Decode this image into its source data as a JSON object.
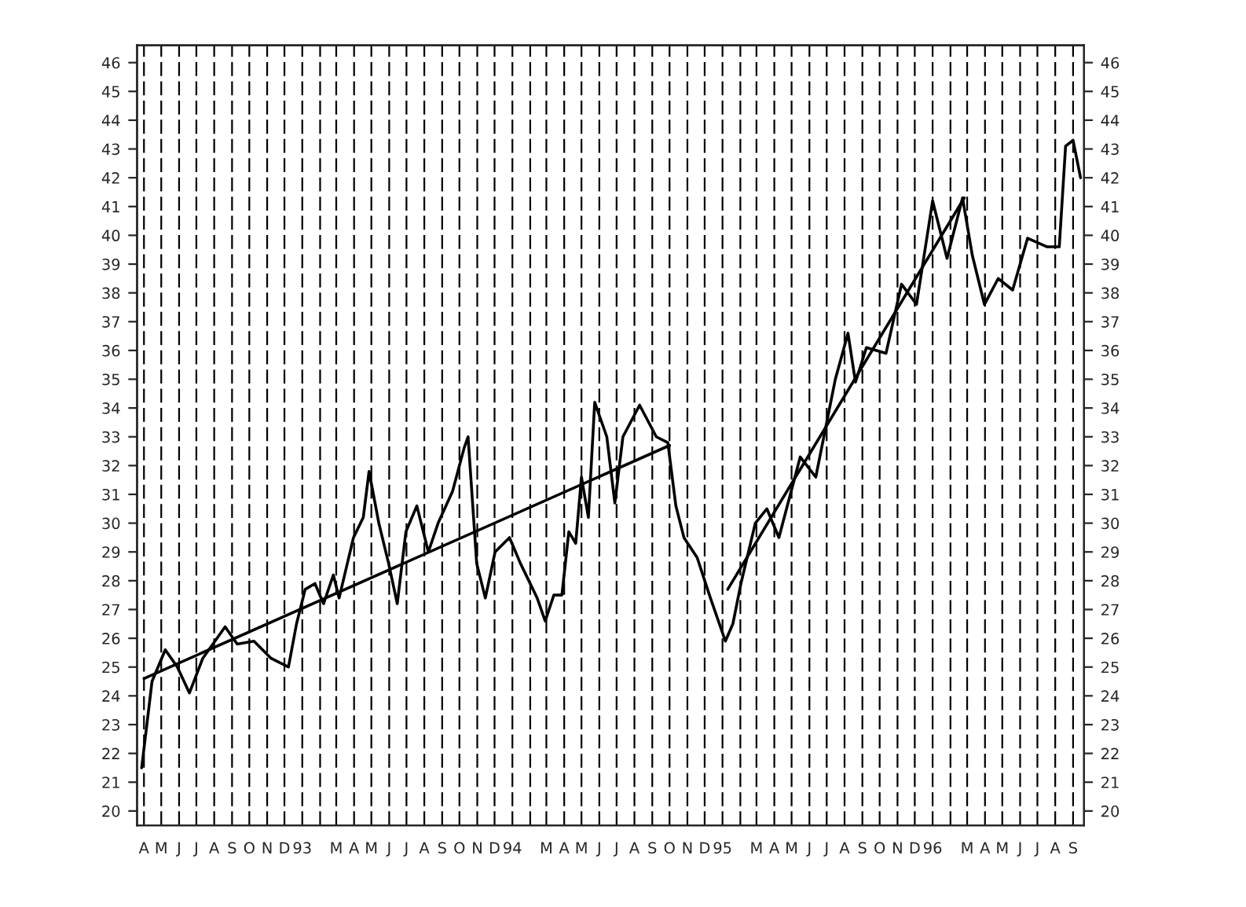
{
  "chart_data": {
    "type": "line",
    "grid": "x",
    "legend": false,
    "marker": "none",
    "line_style": "solid",
    "xlim": [
      "1992-03-20",
      "1996-09-20"
    ],
    "xticks": [
      {
        "value": "1992-04-01",
        "label": "A"
      },
      {
        "value": "1992-05-01",
        "label": "M"
      },
      {
        "value": "1992-06-01",
        "label": "J"
      },
      {
        "value": "1992-07-01",
        "label": "J"
      },
      {
        "value": "1992-08-01",
        "label": "A"
      },
      {
        "value": "1992-09-01",
        "label": "S"
      },
      {
        "value": "1992-10-01",
        "label": "O"
      },
      {
        "value": "1992-11-01",
        "label": "N"
      },
      {
        "value": "1992-12-01",
        "label": "D"
      },
      {
        "value": "1993-01-01",
        "label": "93"
      },
      {
        "value": "1993-02-01",
        "label": null
      },
      {
        "value": "1993-03-01",
        "label": "M"
      },
      {
        "value": "1993-04-01",
        "label": "A"
      },
      {
        "value": "1993-05-01",
        "label": "M"
      },
      {
        "value": "1993-06-01",
        "label": "J"
      },
      {
        "value": "1993-07-01",
        "label": "J"
      },
      {
        "value": "1993-08-01",
        "label": "A"
      },
      {
        "value": "1993-09-01",
        "label": "S"
      },
      {
        "value": "1993-10-01",
        "label": "O"
      },
      {
        "value": "1993-11-01",
        "label": "N"
      },
      {
        "value": "1993-12-01",
        "label": "D"
      },
      {
        "value": "1994-01-01",
        "label": "94"
      },
      {
        "value": "1994-02-01",
        "label": null
      },
      {
        "value": "1994-03-01",
        "label": "M"
      },
      {
        "value": "1994-04-01",
        "label": "A"
      },
      {
        "value": "1994-05-01",
        "label": "M"
      },
      {
        "value": "1994-06-01",
        "label": "J"
      },
      {
        "value": "1994-07-01",
        "label": "J"
      },
      {
        "value": "1994-08-01",
        "label": "A"
      },
      {
        "value": "1994-09-01",
        "label": "S"
      },
      {
        "value": "1994-10-01",
        "label": "O"
      },
      {
        "value": "1994-11-01",
        "label": "N"
      },
      {
        "value": "1994-12-01",
        "label": "D"
      },
      {
        "value": "1995-01-01",
        "label": "95"
      },
      {
        "value": "1995-02-01",
        "label": null
      },
      {
        "value": "1995-03-01",
        "label": "M"
      },
      {
        "value": "1995-04-01",
        "label": "A"
      },
      {
        "value": "1995-05-01",
        "label": "M"
      },
      {
        "value": "1995-06-01",
        "label": "J"
      },
      {
        "value": "1995-07-01",
        "label": "J"
      },
      {
        "value": "1995-08-01",
        "label": "A"
      },
      {
        "value": "1995-09-01",
        "label": "S"
      },
      {
        "value": "1995-10-01",
        "label": "O"
      },
      {
        "value": "1995-11-01",
        "label": "N"
      },
      {
        "value": "1995-12-01",
        "label": "D"
      },
      {
        "value": "1996-01-01",
        "label": "96"
      },
      {
        "value": "1996-02-01",
        "label": null
      },
      {
        "value": "1996-03-01",
        "label": "M"
      },
      {
        "value": "1996-04-01",
        "label": "A"
      },
      {
        "value": "1996-05-01",
        "label": "M"
      },
      {
        "value": "1996-06-01",
        "label": "J"
      },
      {
        "value": "1996-07-01",
        "label": "J"
      },
      {
        "value": "1996-08-01",
        "label": "A"
      },
      {
        "value": "1996-09-01",
        "label": "S"
      }
    ],
    "ylim": [
      19.5,
      46.6
    ],
    "yticks": [
      20,
      21,
      22,
      23,
      24,
      25,
      26,
      27,
      28,
      29,
      30,
      31,
      32,
      33,
      34,
      35,
      36,
      37,
      38,
      39,
      40,
      41,
      42,
      43,
      44,
      45,
      46
    ],
    "y2lim": [
      19.5,
      46.6
    ],
    "y2ticks": [
      20,
      21,
      22,
      23,
      24,
      25,
      26,
      27,
      28,
      29,
      30,
      31,
      32,
      33,
      34,
      35,
      36,
      37,
      38,
      39,
      40,
      41,
      42,
      43,
      44,
      45,
      46
    ],
    "series": [
      {
        "color": "#000000",
        "x": [
          "1992-03-28",
          "1992-04-06",
          "1992-04-15",
          "1992-05-08",
          "1992-05-29",
          "1992-06-19",
          "1992-07-12",
          "1992-08-20",
          "1992-09-10",
          "1992-10-09",
          "1992-11-08",
          "1992-12-08",
          "1992-12-22",
          "1993-01-06",
          "1993-01-23",
          "1993-02-07",
          "1993-02-24",
          "1993-03-06",
          "1993-03-31",
          "1993-04-17",
          "1993-04-27",
          "1993-05-14",
          "1993-05-31",
          "1993-06-15",
          "1993-06-30",
          "1993-07-19",
          "1993-08-08",
          "1993-08-25",
          "1993-09-19",
          "1993-10-09",
          "1993-10-16",
          "1993-10-31",
          "1993-11-15",
          "1993-12-02",
          "1993-12-27",
          "1994-01-15",
          "1994-02-13",
          "1994-02-27",
          "1994-03-14",
          "1994-03-28",
          "1994-04-09",
          "1994-04-21",
          "1994-05-01",
          "1994-05-13",
          "1994-05-24",
          "1994-06-14",
          "1994-06-28",
          "1994-07-12",
          "1994-08-10",
          "1994-09-08",
          "1994-09-28",
          "1994-10-12",
          "1994-10-26",
          "1994-11-18",
          "1994-12-11",
          "1995-01-06",
          "1995-01-19",
          "1995-02-02",
          "1995-02-27",
          "1995-03-19",
          "1995-04-09",
          "1995-05-16",
          "1995-06-12",
          "1995-07-16",
          "1995-08-07",
          "1995-08-20",
          "1995-09-08",
          "1995-10-12",
          "1995-11-08",
          "1995-12-04",
          "1996-01-01",
          "1996-01-26",
          "1996-02-22",
          "1996-03-10",
          "1996-03-31",
          "1996-04-24",
          "1996-05-19",
          "1996-06-14",
          "1996-07-18",
          "1996-08-08",
          "1996-08-19",
          "1996-09-01",
          "1996-09-14"
        ],
        "values": [
          21.5,
          23.0,
          24.5,
          25.6,
          25.0,
          24.1,
          25.3,
          26.4,
          25.8,
          25.9,
          25.3,
          25.0,
          26.5,
          27.7,
          27.9,
          27.2,
          28.2,
          27.4,
          29.5,
          30.2,
          31.8,
          30.0,
          28.6,
          27.2,
          29.7,
          30.6,
          29.0,
          30.0,
          31.1,
          32.6,
          33.0,
          28.6,
          27.4,
          29.0,
          29.5,
          28.6,
          27.4,
          26.6,
          27.5,
          27.5,
          29.7,
          29.3,
          31.6,
          30.2,
          34.2,
          33.0,
          30.7,
          33.0,
          34.1,
          33.0,
          32.8,
          30.6,
          29.5,
          28.8,
          27.4,
          25.9,
          26.5,
          27.9,
          30.0,
          30.5,
          29.5,
          32.3,
          31.6,
          35.0,
          36.6,
          34.9,
          36.1,
          35.9,
          38.3,
          37.6,
          41.2,
          39.2,
          41.3,
          39.3,
          37.6,
          38.5,
          38.1,
          39.9,
          39.6,
          39.6,
          43.1,
          43.3,
          42.0
        ]
      },
      {
        "color": "#000000",
        "x": [
          "1992-04-01",
          "1994-10-01"
        ],
        "values": [
          24.6,
          32.7
        ]
      },
      {
        "color": "#000000",
        "x": [
          "1995-01-10",
          "1996-02-25"
        ],
        "values": [
          27.7,
          41.3
        ]
      }
    ]
  }
}
